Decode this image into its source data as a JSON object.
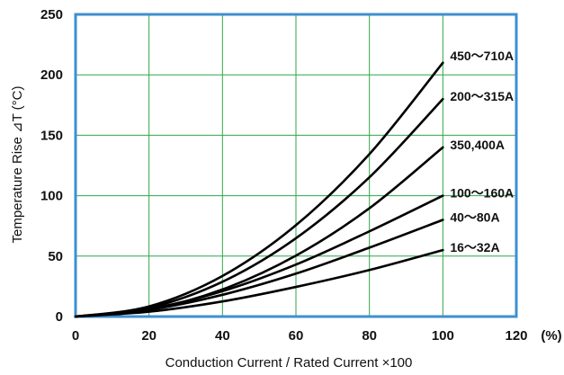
{
  "chart_data": {
    "type": "line",
    "title": "",
    "xlabel": "Conduction Current / Rated  Current ×100",
    "ylabel": "Temperature Rise ⊿T (°C)",
    "x_unit": "(%)",
    "xlim": [
      0,
      120
    ],
    "ylim": [
      0,
      250
    ],
    "x_ticks": [
      "0",
      "20",
      "40",
      "60",
      "80",
      "100",
      "120"
    ],
    "y_ticks": [
      "0",
      "50",
      "100",
      "150",
      "200",
      "250"
    ],
    "grid": true,
    "x": [
      0,
      20,
      40,
      60,
      80,
      100
    ],
    "series": [
      {
        "name": "450～710A",
        "values": [
          0,
          8.4,
          33.6,
          75.6,
          134.4,
          210
        ]
      },
      {
        "name": "200～315A",
        "values": [
          0,
          7.2,
          28.8,
          64.8,
          115.2,
          180
        ]
      },
      {
        "name": "350,400A",
        "values": [
          0,
          5.6,
          22.4,
          50.4,
          89.6,
          140
        ]
      },
      {
        "name": "100～160A",
        "values": [
          0,
          6.3,
          21.0,
          43.0,
          70.5,
          100
        ]
      },
      {
        "name": "40～80A",
        "values": [
          0,
          5.6,
          18.0,
          35.5,
          57.0,
          80
        ]
      },
      {
        "name": "16～32A",
        "values": [
          0,
          4.0,
          12.5,
          24.5,
          38.5,
          55
        ]
      }
    ],
    "line_color": "#000000",
    "frame_color": "#3d8fd1",
    "grid_color": "#2fa64a"
  }
}
